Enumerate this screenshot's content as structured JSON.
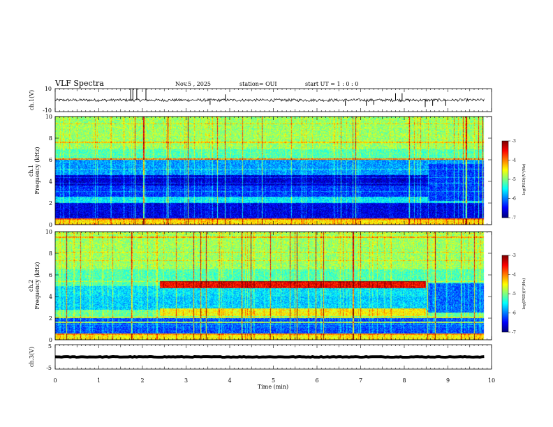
{
  "header": {
    "title": "VLF Spectra",
    "date": "Nov.5 , 2025",
    "station": "station= OUI",
    "start": "start UT = 1 : 0 : 0"
  },
  "chart_data": [
    {
      "type": "line",
      "panel": "ch1-waveform",
      "ylabel": "ch.1(V)",
      "ylim": [
        -10,
        10
      ],
      "yticks": [
        "10",
        "-10"
      ],
      "xlim": [
        0,
        10
      ],
      "baseline": 0,
      "noise_amplitude": 1.2,
      "spikes": [
        {
          "x": 1.73,
          "y": 10
        },
        {
          "x": 1.78,
          "y": 10
        },
        {
          "x": 1.87,
          "y": 10
        },
        {
          "x": 2.08,
          "y": 10
        },
        {
          "x": 3.55,
          "y": -4
        },
        {
          "x": 6.65,
          "y": -5
        },
        {
          "x": 7.13,
          "y": -5
        },
        {
          "x": 7.3,
          "y": -4
        },
        {
          "x": 7.8,
          "y": 6
        },
        {
          "x": 8.48,
          "y": -6
        },
        {
          "x": 8.65,
          "y": -5
        },
        {
          "x": 8.95,
          "y": -5
        },
        {
          "x": 3.9,
          "y": 5
        },
        {
          "x": 7.95,
          "y": 6
        }
      ]
    },
    {
      "type": "heatmap",
      "panel": "ch1-spectrogram",
      "ylabel": "ch.1 Frequency (kHz)",
      "xlim": [
        0,
        10
      ],
      "ylim": [
        0,
        10
      ],
      "yticks": [
        "0",
        "2",
        "4",
        "6",
        "8",
        "10"
      ],
      "colorbar": {
        "min": -7,
        "max": -3,
        "ticks": [
          "-3",
          "-4",
          "-5",
          "-6",
          "-7"
        ],
        "label": "log(PSD)(V²/Hz)"
      },
      "bands": [
        {
          "fmin": 0.0,
          "fmax": 0.6,
          "value": -4.4
        },
        {
          "fmin": 0.6,
          "fmax": 2.0,
          "value": -6.6
        },
        {
          "fmin": 2.0,
          "fmax": 2.6,
          "value": -5.6
        },
        {
          "fmin": 2.6,
          "fmax": 3.6,
          "value": -6.3
        },
        {
          "fmin": 3.6,
          "fmax": 4.6,
          "value": -6.7
        },
        {
          "fmin": 4.6,
          "fmax": 6.0,
          "value": -5.9
        },
        {
          "fmin": 6.0,
          "fmax": 7.0,
          "value": -5.2
        },
        {
          "fmin": 7.0,
          "fmax": 10.0,
          "value": -4.9
        }
      ],
      "events": [
        {
          "tmin": 8.55,
          "tmax": 9.85,
          "fmin": 2.2,
          "fmax": 5.6,
          "value": -6.3
        }
      ],
      "lines": [
        {
          "f": 0.5,
          "value": -4.0
        },
        {
          "f": 6.05,
          "value": -4.1
        },
        {
          "f": 7.6,
          "value": -4.3
        }
      ]
    },
    {
      "type": "heatmap",
      "panel": "ch2-spectrogram",
      "ylabel": "ch.2 Frequency (kHz)",
      "xlim": [
        0,
        10
      ],
      "ylim": [
        0,
        10
      ],
      "yticks": [
        "0",
        "2",
        "4",
        "6",
        "8",
        "10"
      ],
      "colorbar": {
        "min": -7,
        "max": -3,
        "ticks": [
          "-3",
          "-4",
          "-5",
          "-6",
          "-7"
        ],
        "label": "log(PSD)(V²/Hz)"
      },
      "bands": [
        {
          "fmin": 0.0,
          "fmax": 0.6,
          "value": -4.5
        },
        {
          "fmin": 0.6,
          "fmax": 2.0,
          "value": -6.2
        },
        {
          "fmin": 2.0,
          "fmax": 2.8,
          "value": -5.1
        },
        {
          "fmin": 2.8,
          "fmax": 4.0,
          "value": -5.7
        },
        {
          "fmin": 4.0,
          "fmax": 5.0,
          "value": -5.6
        },
        {
          "fmin": 5.0,
          "fmax": 6.5,
          "value": -5.2
        },
        {
          "fmin": 6.5,
          "fmax": 10.0,
          "value": -4.9
        }
      ],
      "events": [
        {
          "tmin": 2.4,
          "tmax": 8.5,
          "fmin": 4.8,
          "fmax": 5.4,
          "value": -3.5
        },
        {
          "tmin": 2.4,
          "tmax": 8.5,
          "fmin": 2.2,
          "fmax": 2.9,
          "value": -4.5
        },
        {
          "tmin": 8.55,
          "tmax": 9.85,
          "fmin": 2.5,
          "fmax": 5.2,
          "value": -6.1
        }
      ],
      "lines": [
        {
          "f": 9.5,
          "value": -4.2
        },
        {
          "f": 0.5,
          "value": -4.1
        },
        {
          "f": 1.6,
          "value": -4.9
        }
      ]
    },
    {
      "type": "line",
      "panel": "ch3-waveform",
      "ylabel": "ch.3(V)",
      "ylim": [
        -5,
        5
      ],
      "yticks": [
        "5",
        "-5"
      ],
      "xlim": [
        0,
        10
      ],
      "baseline": 0,
      "noise_amplitude": 0.15,
      "spikes": []
    }
  ],
  "x_axis": {
    "label": "Time (min)",
    "ticks": [
      "0",
      "1",
      "2",
      "3",
      "4",
      "5",
      "6",
      "7",
      "8",
      "9",
      "10"
    ]
  },
  "colorbar_labels": [
    "log(PSD)(V²/Hz)",
    "log(PSD)(V²/Hz)"
  ]
}
